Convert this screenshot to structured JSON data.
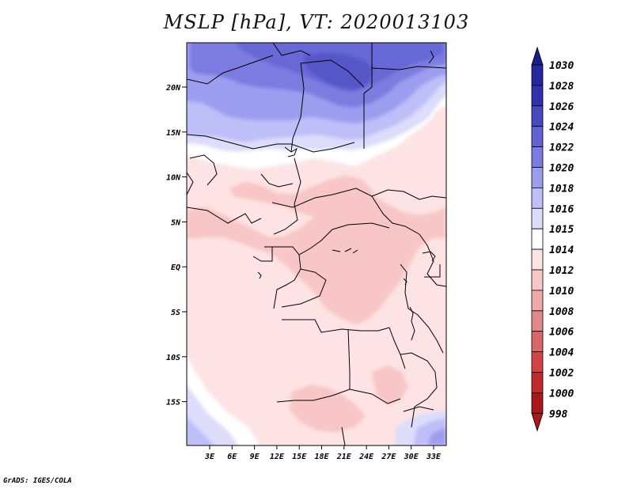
{
  "title": "MSLP [hPa], VT: 2020013103",
  "credit": "GrADS: IGES/COLA",
  "map": {
    "lat_labels": [
      "20N",
      "15N",
      "10N",
      "5N",
      "EQ",
      "5S",
      "10S",
      "15S"
    ],
    "lon_labels": [
      "3E",
      "6E",
      "9E",
      "12E",
      "15E",
      "18E",
      "21E",
      "24E",
      "27E",
      "30E",
      "33E"
    ],
    "lat_range": [
      -20,
      25
    ],
    "lon_range": [
      0,
      35
    ]
  },
  "legend": {
    "levels": [
      {
        "label": "1030",
        "color": "#1c1c90"
      },
      {
        "label": "1028",
        "color": "#26269e"
      },
      {
        "label": "1026",
        "color": "#3131ac"
      },
      {
        "label": "1024",
        "color": "#4848bf"
      },
      {
        "label": "1022",
        "color": "#6262d2"
      },
      {
        "label": "1020",
        "color": "#7b7be0"
      },
      {
        "label": "1018",
        "color": "#9d9df0"
      },
      {
        "label": "1016",
        "color": "#bebef8"
      },
      {
        "label": "1015",
        "color": "#dcdcfb"
      },
      {
        "label": "1014",
        "color": "#ffffff"
      },
      {
        "label": "1012",
        "color": "#fde3e3"
      },
      {
        "label": "1010",
        "color": "#f8c6c6"
      },
      {
        "label": "1008",
        "color": "#eda8a8"
      },
      {
        "label": "1006",
        "color": "#e18888"
      },
      {
        "label": "1004",
        "color": "#d86868"
      },
      {
        "label": "1002",
        "color": "#cf4545"
      },
      {
        "label": "1000",
        "color": "#c02a2a"
      },
      {
        "label": "998",
        "color": "#a81818"
      }
    ]
  },
  "colors": {
    "high": "#6f6fd8",
    "mid_high": "#a2a2f0",
    "neutral": "#ffffff",
    "low": "#fbd4d4",
    "lower": "#f6b9b9",
    "border": "#000000"
  }
}
